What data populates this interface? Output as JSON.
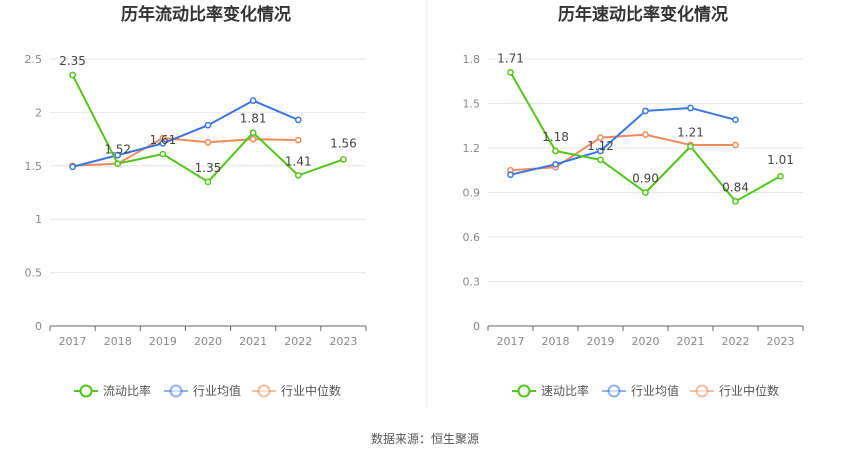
{
  "source": "数据来源：恒生聚源",
  "chart_data": [
    {
      "type": "line",
      "title": "历年流动比率变化情况",
      "categories": [
        "2017",
        "2018",
        "2019",
        "2020",
        "2021",
        "2022",
        "2023"
      ],
      "ylim": [
        0,
        2.5
      ],
      "yticks": [
        "0",
        "0.5",
        "1",
        "1.5",
        "2",
        "2.5"
      ],
      "ytick_values": [
        0,
        0.5,
        1,
        1.5,
        2,
        2.5
      ],
      "grid": true,
      "legend_position": "bottom",
      "series": [
        {
          "name": "流动比率",
          "color": "#52c41a",
          "values": [
            2.35,
            1.52,
            1.61,
            1.35,
            1.81,
            1.41,
            1.56
          ],
          "labels": [
            "2.35",
            "1.52",
            "1.61",
            "1.35",
            "1.81",
            "1.41",
            "1.56"
          ]
        },
        {
          "name": "行业均值",
          "color": "#3a75e0",
          "values": [
            1.49,
            1.6,
            1.71,
            1.88,
            2.11,
            1.93,
            null
          ]
        },
        {
          "name": "行业中位数",
          "color": "#f08a5d",
          "values": [
            1.5,
            1.52,
            1.76,
            1.72,
            1.75,
            1.74,
            null
          ]
        }
      ]
    },
    {
      "type": "line",
      "title": "历年速动比率变化情况",
      "categories": [
        "2017",
        "2018",
        "2019",
        "2020",
        "2021",
        "2022",
        "2023"
      ],
      "ylim": [
        0,
        1.8
      ],
      "yticks": [
        "0",
        "0.3",
        "0.6",
        "0.9",
        "1.2",
        "1.5",
        "1.8"
      ],
      "ytick_values": [
        0,
        0.3,
        0.6,
        0.9,
        1.2,
        1.5,
        1.8
      ],
      "grid": true,
      "legend_position": "bottom",
      "series": [
        {
          "name": "速动比率",
          "color": "#52c41a",
          "values": [
            1.71,
            1.18,
            1.12,
            0.9,
            1.21,
            0.84,
            1.01
          ],
          "labels": [
            "1.71",
            "1.18",
            "1.12",
            "0.90",
            "1.21",
            "0.84",
            "1.01"
          ]
        },
        {
          "name": "行业均值",
          "color": "#3a75e0",
          "values": [
            1.02,
            1.09,
            1.18,
            1.45,
            1.47,
            1.39,
            null
          ]
        },
        {
          "name": "行业中位数",
          "color": "#f08a5d",
          "values": [
            1.05,
            1.07,
            1.27,
            1.29,
            1.22,
            1.22,
            null
          ]
        }
      ]
    }
  ]
}
